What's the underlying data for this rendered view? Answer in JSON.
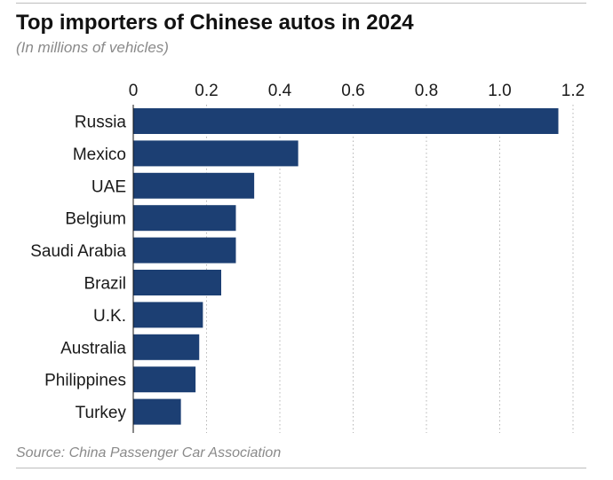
{
  "chart_data": {
    "type": "bar",
    "orientation": "horizontal",
    "title": "Top importers of Chinese autos in 2024",
    "subtitle": "(In millions of vehicles)",
    "source": "Source: China Passenger Car Association",
    "categories": [
      "Russia",
      "Mexico",
      "UAE",
      "Belgium",
      "Saudi Arabia",
      "Brazil",
      "U.K.",
      "Australia",
      "Philippines",
      "Turkey"
    ],
    "values": [
      1.16,
      0.45,
      0.33,
      0.28,
      0.28,
      0.24,
      0.19,
      0.18,
      0.17,
      0.13
    ],
    "xlim": [
      0,
      1.2
    ],
    "xticks": [
      0,
      0.2,
      0.4,
      0.6,
      0.8,
      1.0,
      1.2
    ],
    "xtick_labels": [
      "0",
      "0.2",
      "0.4",
      "0.6",
      "0.8",
      "1.0",
      "1.2"
    ],
    "grid": "vertical dotted",
    "bar_color": "#1c3f73"
  }
}
